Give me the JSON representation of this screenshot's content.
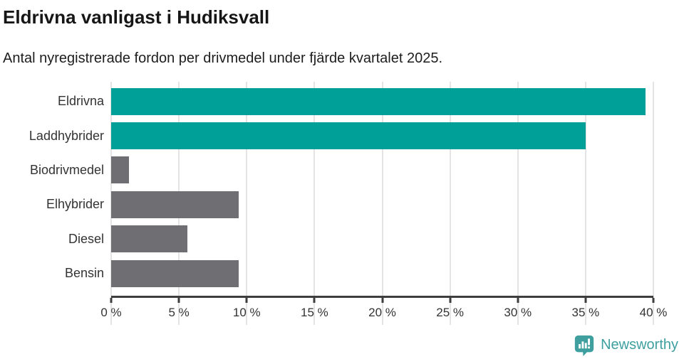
{
  "chart_data": {
    "type": "bar",
    "orientation": "horizontal",
    "title": "Eldrivna vanligast i Hudiksvall",
    "subtitle": "Antal nyregistrerade fordon per drivmedel under fjärde kvartalet 2025.",
    "categories": [
      "Eldrivna",
      "Laddhybrider",
      "Biodrivmedel",
      "Elhybrider",
      "Diesel",
      "Bensin"
    ],
    "values": [
      39.4,
      35.0,
      1.3,
      9.4,
      5.6,
      9.4
    ],
    "unit": "%",
    "xlim": [
      0,
      40
    ],
    "x_ticks": [
      0,
      5,
      10,
      15,
      20,
      25,
      30,
      35,
      40
    ],
    "x_tick_labels": [
      "0 %",
      "5 %",
      "10 %",
      "15 %",
      "20 %",
      "25 %",
      "30 %",
      "35 %",
      "40 %"
    ],
    "bar_colors": [
      "#00a099",
      "#00a099",
      "#6e6e73",
      "#6e6e73",
      "#6e6e73",
      "#6e6e73"
    ],
    "grid": "vertical",
    "legend": "none"
  },
  "colors": {
    "accent_teal": "#00a099",
    "bar_gray": "#6e6e73",
    "gridline": "#e4e4e4",
    "axis": "#3e3e3e",
    "logo_teal": "#3f9f9f"
  },
  "footer": {
    "brand": "Newsworthy"
  }
}
